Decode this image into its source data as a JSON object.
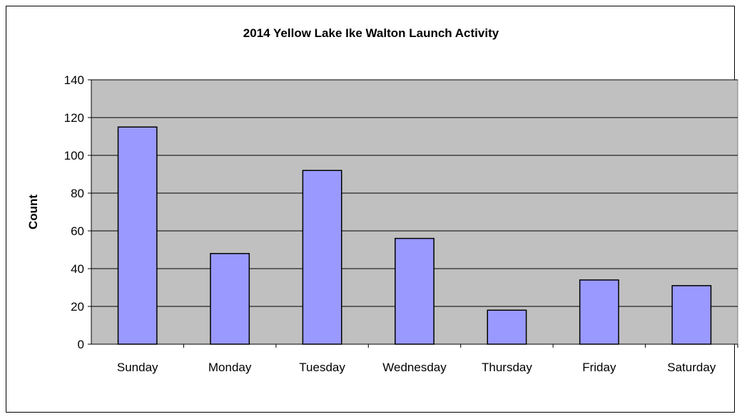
{
  "chart_data": {
    "type": "bar",
    "title": "2014 Yellow Lake Ike Walton Launch Activity",
    "xlabel": "",
    "ylabel": "Count",
    "categories": [
      "Sunday",
      "Monday",
      "Tuesday",
      "Wednesday",
      "Thursday",
      "Friday",
      "Saturday"
    ],
    "values": [
      115,
      48,
      92,
      56,
      18,
      34,
      31
    ],
    "ylim": [
      0,
      140
    ],
    "yticks": [
      0,
      20,
      40,
      60,
      80,
      100,
      120,
      140
    ],
    "grid": true,
    "legend": "none",
    "colors": {
      "bar": "#9999ff",
      "plot_background": "#c0c0c0",
      "gridline": "#000000",
      "bar_border": "#000000"
    }
  }
}
